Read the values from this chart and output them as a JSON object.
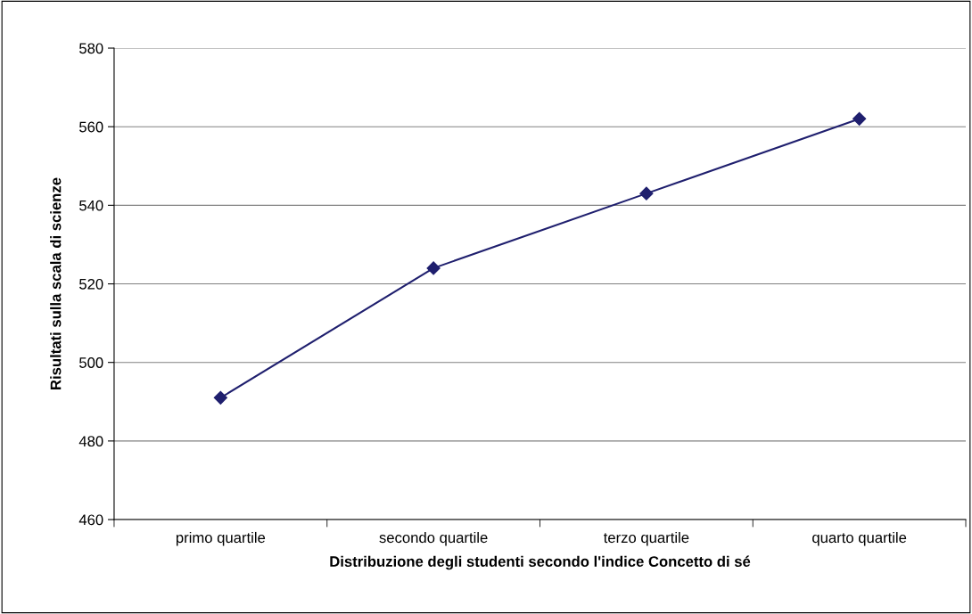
{
  "chart_data": {
    "type": "line",
    "xlabel": "Distribuzione degli studenti secondo l'indice Concetto di sé",
    "ylabel": "Risultati sulla scala di scienze",
    "categories": [
      "primo quartile",
      "secondo quartile",
      "terzo quartile",
      "quarto quartile"
    ],
    "series": [
      {
        "color": "#1f1f6e",
        "values": [
          491,
          524,
          543,
          562
        ]
      }
    ],
    "ylim": [
      460,
      580
    ],
    "yticks": [
      460,
      480,
      500,
      520,
      540,
      560,
      580
    ],
    "grid": "y",
    "marker": "diamond",
    "line_style": "solid",
    "legend": false
  }
}
